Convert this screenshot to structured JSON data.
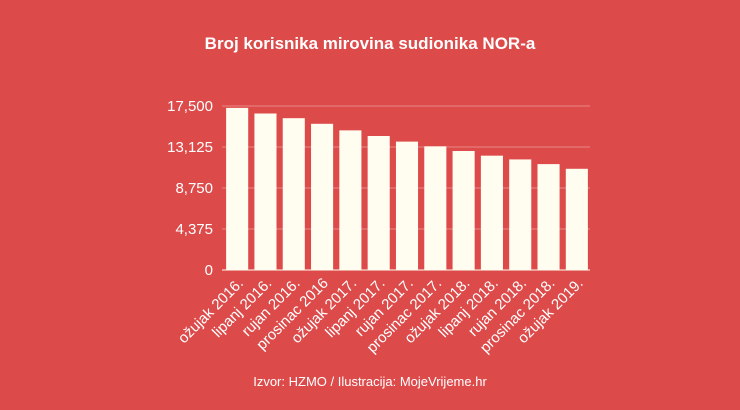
{
  "chart_data": {
    "type": "bar",
    "title": "Broj korisnika mirovina sudionika NOR-a",
    "xlabel": "",
    "ylabel": "",
    "source": "Izvor: HZMO / Ilustracija: MojeVrijeme.hr",
    "categories": [
      "ožujak 2016.",
      "lipanj 2016.",
      "rujan 2016.",
      "prosinac 2016",
      "ožujak 2017.",
      "lipanj 2017.",
      "rujan 2017.",
      "prosinac 2017.",
      "ožujak 2018.",
      "lipanj 2018.",
      "rujan 2018.",
      "prosinac 2018.",
      "ožujak 2019."
    ],
    "values": [
      17300,
      16700,
      16200,
      15600,
      14900,
      14300,
      13700,
      13200,
      12700,
      12200,
      11800,
      11300,
      10800
    ],
    "yticks": [
      0,
      4375,
      8750,
      13125,
      17500
    ],
    "ytick_labels": [
      "0",
      "4,375",
      "8,750",
      "13,125",
      "17,500"
    ],
    "ylim": [
      0,
      17500
    ],
    "grid": true,
    "colors": {
      "background": "#dd4a4a",
      "bar": "#fffdf0",
      "gridline": "#e98585",
      "text": "#ffffff"
    }
  }
}
